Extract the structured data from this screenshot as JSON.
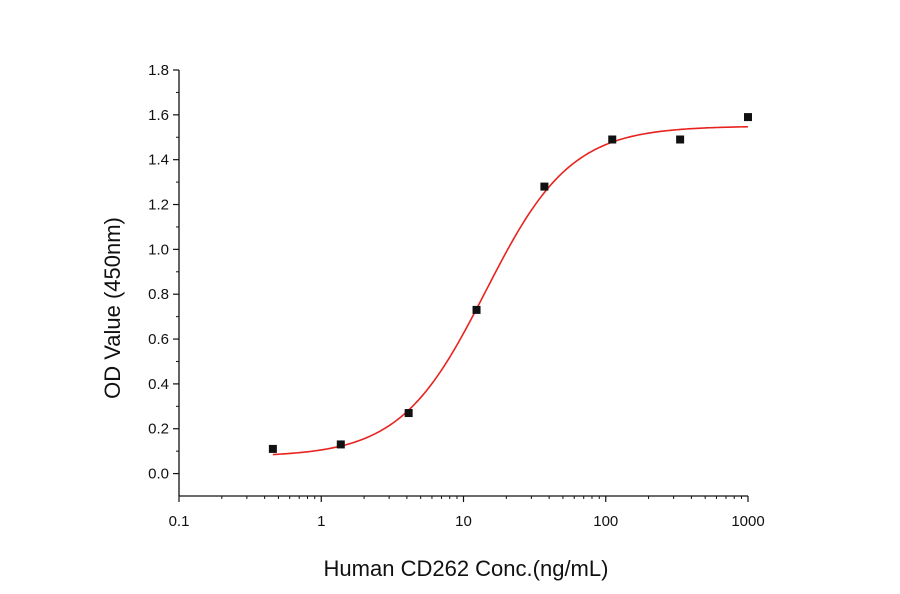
{
  "chart_data": {
    "type": "scatter",
    "x_scale": "log",
    "xlabel": "Human CD262 Conc.(ng/mL)",
    "ylabel": "OD Value (450nm)",
    "xlim": [
      0.1,
      1000
    ],
    "ylim": [
      -0.1,
      1.8
    ],
    "x_ticks": [
      "0.1",
      "1",
      "10",
      "100",
      "1000"
    ],
    "y_ticks": [
      "0.0",
      "0.2",
      "0.4",
      "0.6",
      "0.8",
      "1.0",
      "1.2",
      "1.4",
      "1.6",
      "1.8"
    ],
    "grid": false,
    "legend": "none",
    "series": [
      {
        "marker": "square",
        "color": "#111111",
        "x": [
          0.457,
          1.372,
          4.115,
          12.35,
          37.04,
          111.1,
          333.3,
          1000
        ],
        "y": [
          0.11,
          0.13,
          0.27,
          0.73,
          1.28,
          1.49,
          1.49,
          1.59
        ]
      }
    ],
    "fit_curve": {
      "model": "4PL",
      "color": "#e8231f",
      "bottom": 0.075,
      "top": 1.55,
      "ec50": 14.3,
      "hill": 1.45,
      "x_range": [
        0.457,
        1000
      ]
    }
  }
}
